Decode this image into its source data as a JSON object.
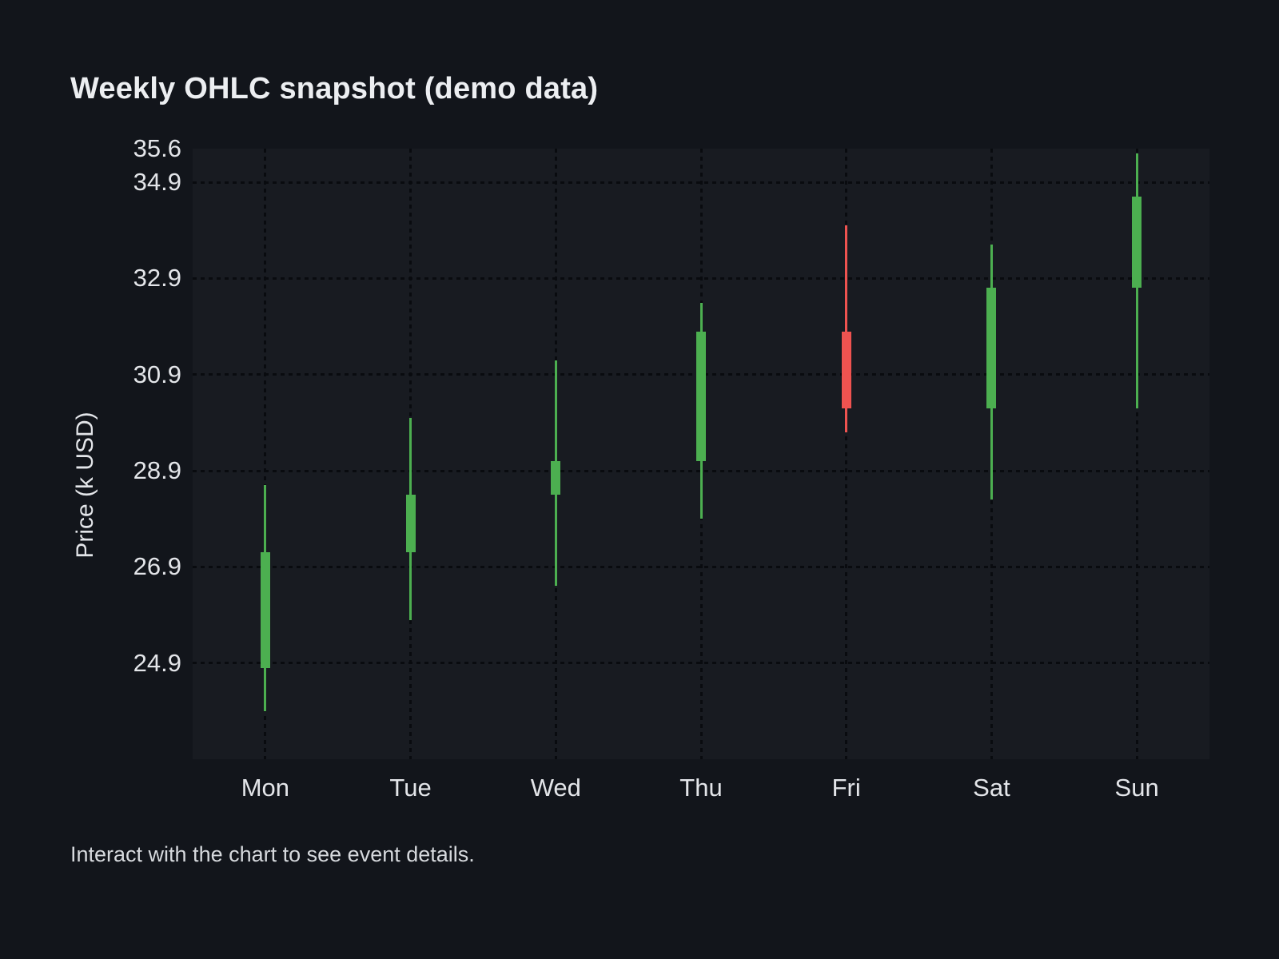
{
  "page": {
    "title": "Weekly OHLC snapshot (demo data)",
    "footer": "Interact with the chart to see event details."
  },
  "theme": {
    "background": "#12151b",
    "plot_background": "#181b21",
    "grid_color": "#090b0f",
    "text_color": "#e9ebee",
    "up_color": "#4caf50",
    "down_color": "#ef5350"
  },
  "chart_data": {
    "type": "candlestick",
    "title": "Weekly OHLC snapshot (demo data)",
    "xlabel": "",
    "ylabel": "Price (k USD)",
    "categories": [
      "Mon",
      "Tue",
      "Wed",
      "Thu",
      "Fri",
      "Sat",
      "Sun"
    ],
    "series": [
      {
        "day": "Mon",
        "open": 24.8,
        "high": 28.6,
        "low": 23.9,
        "close": 27.2
      },
      {
        "day": "Tue",
        "open": 27.2,
        "high": 30.0,
        "low": 25.8,
        "close": 28.4
      },
      {
        "day": "Wed",
        "open": 28.4,
        "high": 31.2,
        "low": 26.5,
        "close": 29.1
      },
      {
        "day": "Thu",
        "open": 29.1,
        "high": 32.4,
        "low": 27.9,
        "close": 31.8
      },
      {
        "day": "Fri",
        "open": 31.8,
        "high": 34.0,
        "low": 29.7,
        "close": 30.2
      },
      {
        "day": "Sat",
        "open": 30.2,
        "high": 33.6,
        "low": 28.3,
        "close": 32.7
      },
      {
        "day": "Sun",
        "open": 32.7,
        "high": 35.5,
        "low": 30.2,
        "close": 34.6
      }
    ],
    "yticks": [
      {
        "label": "35.6",
        "value": 35.6,
        "grid": false
      },
      {
        "label": "34.9",
        "value": 34.9,
        "grid": true
      },
      {
        "label": "32.9",
        "value": 32.9,
        "grid": true
      },
      {
        "label": "30.9",
        "value": 30.9,
        "grid": true
      },
      {
        "label": "28.9",
        "value": 28.9,
        "grid": true
      },
      {
        "label": "26.9",
        "value": 26.9,
        "grid": true
      },
      {
        "label": "24.9",
        "value": 24.9,
        "grid": true
      }
    ],
    "ylim": [
      22.9,
      35.6
    ],
    "grid": "dotted",
    "legend": "none",
    "colors": {
      "up": "#4caf50",
      "down": "#ef5350"
    }
  }
}
